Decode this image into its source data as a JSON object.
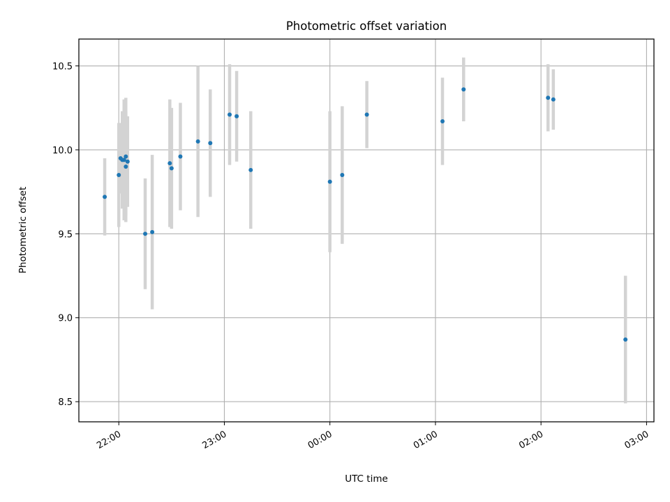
{
  "chart_data": {
    "type": "scatter",
    "title": "Photometric offset variation",
    "xlabel": "UTC time",
    "ylabel": "Photometric offset",
    "x_unit": "UTC time",
    "x_ticks": [
      "22:00",
      "23:00",
      "00:00",
      "01:00",
      "02:00",
      "03:00"
    ],
    "y_ticks": [
      "8.5",
      "9.0",
      "9.5",
      "10.0",
      "10.5"
    ],
    "ylim": [
      8.38,
      10.66
    ],
    "grid": true,
    "colors": {
      "points": "#1f77b4",
      "error_bars": "#d3d3d3",
      "grid": "#b0b0b0",
      "axes": "#000000"
    },
    "points": [
      {
        "time": "21:52",
        "y": 9.72,
        "err": 0.23
      },
      {
        "time": "22:00",
        "y": 9.85,
        "err": 0.31
      },
      {
        "time": "22:01",
        "y": 9.95,
        "err": 0.21
      },
      {
        "time": "22:02",
        "y": 9.94,
        "err": 0.29
      },
      {
        "time": "22:03",
        "y": 9.94,
        "err": 0.36
      },
      {
        "time": "22:04",
        "y": 9.9,
        "err": 0.33
      },
      {
        "time": "22:04",
        "y": 9.96,
        "err": 0.35
      },
      {
        "time": "22:05",
        "y": 9.93,
        "err": 0.27
      },
      {
        "time": "22:15",
        "y": 9.5,
        "err": 0.33
      },
      {
        "time": "22:19",
        "y": 9.51,
        "err": 0.46
      },
      {
        "time": "22:29",
        "y": 9.92,
        "err": 0.38
      },
      {
        "time": "22:30",
        "y": 9.89,
        "err": 0.36
      },
      {
        "time": "22:35",
        "y": 9.96,
        "err": 0.32
      },
      {
        "time": "22:45",
        "y": 10.05,
        "err": 0.45
      },
      {
        "time": "22:52",
        "y": 10.04,
        "err": 0.32
      },
      {
        "time": "23:03",
        "y": 10.21,
        "err": 0.3
      },
      {
        "time": "23:07",
        "y": 10.2,
        "err": 0.27
      },
      {
        "time": "23:15",
        "y": 9.88,
        "err": 0.35
      },
      {
        "time": "00:00",
        "y": 9.81,
        "err": 0.42
      },
      {
        "time": "00:07",
        "y": 9.85,
        "err": 0.41
      },
      {
        "time": "00:21",
        "y": 10.21,
        "err": 0.2
      },
      {
        "time": "01:04",
        "y": 10.17,
        "err": 0.26
      },
      {
        "time": "01:16",
        "y": 10.36,
        "err": 0.19
      },
      {
        "time": "02:04",
        "y": 10.31,
        "err": 0.2
      },
      {
        "time": "02:07",
        "y": 10.3,
        "err": 0.18
      },
      {
        "time": "02:48",
        "y": 8.87,
        "err": 0.38
      }
    ]
  }
}
